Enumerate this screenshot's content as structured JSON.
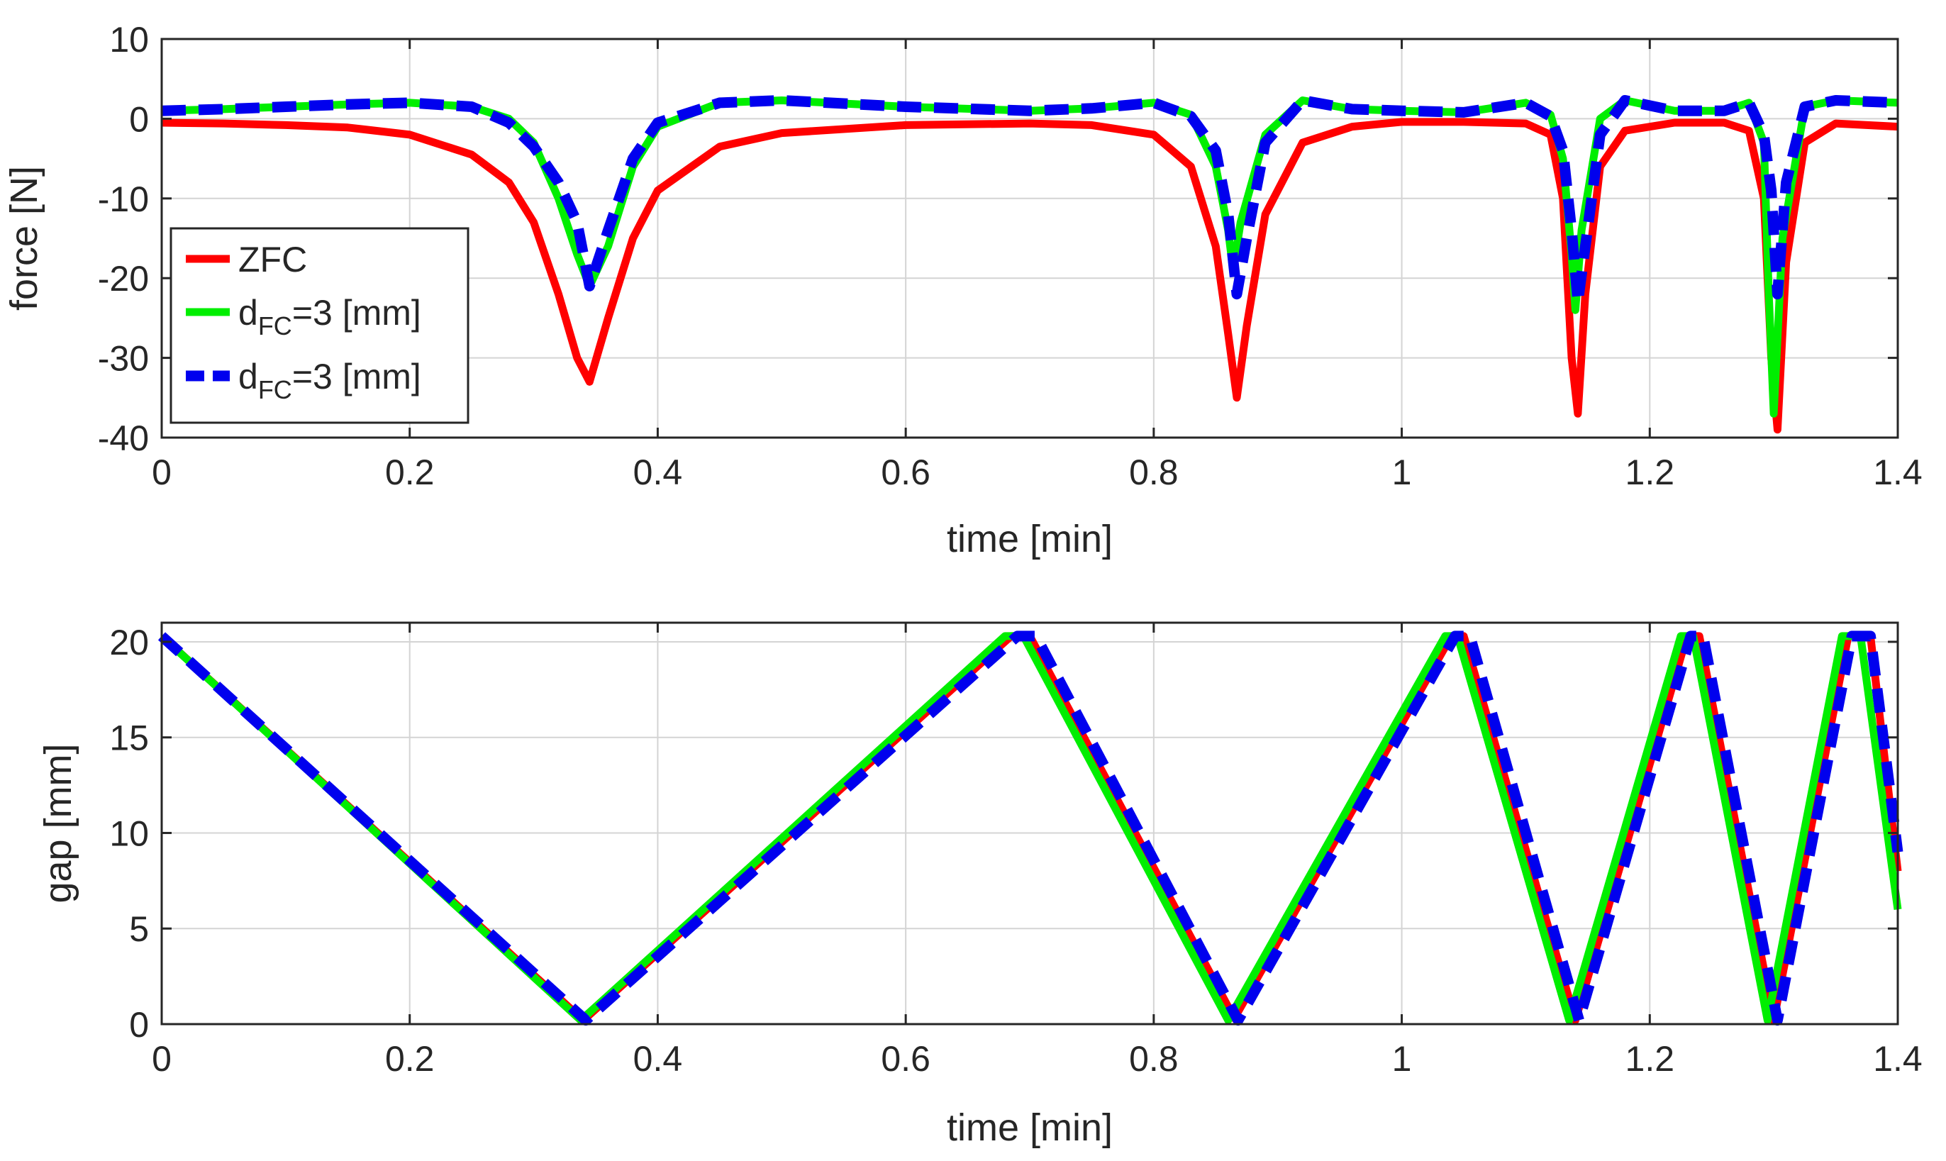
{
  "chart_data": [
    {
      "type": "line",
      "id": "force",
      "xlabel": "time [min]",
      "ylabel": "force [N]",
      "xlim": [
        0,
        1.4
      ],
      "ylim": [
        -40,
        10
      ],
      "xticks": [
        0,
        0.2,
        0.4,
        0.6,
        0.8,
        1,
        1.2,
        1.4
      ],
      "yticks": [
        10,
        0,
        -10,
        -20,
        -30,
        -40
      ],
      "xtick_labels": [
        "0",
        "0.2",
        "0.4",
        "0.6",
        "0.8",
        "1",
        "1.2",
        "1.4"
      ],
      "ytick_labels": [
        "10",
        "0",
        "-10",
        "-20",
        "-30",
        "-40"
      ],
      "grid": true,
      "legend": {
        "location": "bottom-left",
        "entries": [
          {
            "series": "ZFC",
            "label": "ZFC"
          },
          {
            "series": "FC-solid",
            "base": "d",
            "sub": "FC",
            "rest": "=3 [mm]"
          },
          {
            "series": "FC-dashed",
            "base": "d",
            "sub": "FC",
            "rest": "=3 [mm]"
          }
        ]
      },
      "series": [
        {
          "name": "ZFC",
          "color": "#ff0000",
          "style": "solid",
          "x": [
            0,
            0.05,
            0.1,
            0.15,
            0.2,
            0.25,
            0.28,
            0.3,
            0.32,
            0.335,
            0.345,
            0.36,
            0.38,
            0.4,
            0.45,
            0.5,
            0.6,
            0.7,
            0.75,
            0.8,
            0.83,
            0.85,
            0.86,
            0.867,
            0.875,
            0.89,
            0.92,
            0.96,
            1.0,
            1.05,
            1.1,
            1.12,
            1.13,
            1.137,
            1.142,
            1.148,
            1.16,
            1.18,
            1.22,
            1.26,
            1.28,
            1.292,
            1.298,
            1.303,
            1.31,
            1.325,
            1.35,
            1.4
          ],
          "y": [
            -0.5,
            -0.6,
            -0.8,
            -1.1,
            -2,
            -4.5,
            -8,
            -13,
            -22,
            -30,
            -33,
            -25,
            -15,
            -9,
            -3.5,
            -1.8,
            -0.8,
            -0.6,
            -0.8,
            -2,
            -6,
            -16,
            -27,
            -35,
            -26,
            -12,
            -3,
            -1,
            -0.4,
            -0.4,
            -0.6,
            -2,
            -10,
            -30,
            -37,
            -22,
            -6,
            -1.5,
            -0.5,
            -0.5,
            -1.5,
            -10,
            -30,
            -39,
            -18,
            -3,
            -0.6,
            -1
          ]
        },
        {
          "name": "FC-solid",
          "color": "#00ee00",
          "style": "solid",
          "x": [
            0,
            0.05,
            0.1,
            0.15,
            0.2,
            0.25,
            0.28,
            0.3,
            0.32,
            0.335,
            0.345,
            0.36,
            0.38,
            0.4,
            0.45,
            0.5,
            0.6,
            0.7,
            0.75,
            0.8,
            0.83,
            0.85,
            0.86,
            0.864,
            0.87,
            0.89,
            0.92,
            0.96,
            1.0,
            1.05,
            1.1,
            1.12,
            1.13,
            1.137,
            1.14,
            1.145,
            1.16,
            1.18,
            1.22,
            1.26,
            1.28,
            1.292,
            1.296,
            1.3,
            1.307,
            1.325,
            1.35,
            1.4
          ],
          "y": [
            1,
            1.2,
            1.5,
            1.8,
            2,
            1.5,
            0,
            -3,
            -10,
            -17,
            -21,
            -16,
            -6,
            -1,
            2,
            2.3,
            1.5,
            1,
            1.3,
            2,
            0.5,
            -6,
            -14,
            -19,
            -13,
            -2,
            2.3,
            1.2,
            1,
            0.8,
            2,
            0.5,
            -5,
            -17,
            -24,
            -14,
            0,
            2.3,
            1,
            1,
            2,
            -3,
            -22,
            -37,
            -15,
            1.5,
            2.3,
            2
          ]
        },
        {
          "name": "FC-dashed",
          "color": "#0000ee",
          "style": "dashed",
          "x": [
            0,
            0.05,
            0.1,
            0.15,
            0.2,
            0.25,
            0.28,
            0.3,
            0.32,
            0.335,
            0.345,
            0.36,
            0.38,
            0.4,
            0.45,
            0.5,
            0.6,
            0.7,
            0.75,
            0.8,
            0.83,
            0.85,
            0.86,
            0.867,
            0.875,
            0.89,
            0.92,
            0.96,
            1.0,
            1.05,
            1.1,
            1.12,
            1.13,
            1.137,
            1.142,
            1.148,
            1.16,
            1.18,
            1.22,
            1.26,
            1.28,
            1.292,
            1.298,
            1.303,
            1.31,
            1.325,
            1.35,
            1.4
          ],
          "y": [
            1,
            1.2,
            1.5,
            1.8,
            2,
            1.5,
            -0.5,
            -3.5,
            -8,
            -13,
            -21,
            -14,
            -5,
            -0.5,
            2,
            2.3,
            1.5,
            1,
            1.3,
            2,
            0.3,
            -4,
            -12,
            -22,
            -15,
            -3,
            2.3,
            1.2,
            1,
            0.8,
            2,
            0.3,
            -4,
            -14,
            -23,
            -16,
            -2,
            2.3,
            1,
            1,
            2,
            -2,
            -9,
            -22,
            -8,
            1.5,
            2.3,
            2
          ]
        }
      ]
    },
    {
      "type": "line",
      "id": "gap",
      "xlabel": "time [min]",
      "ylabel": "gap [mm]",
      "xlim": [
        0,
        1.4
      ],
      "ylim": [
        0,
        21
      ],
      "xticks": [
        0,
        0.2,
        0.4,
        0.6,
        0.8,
        1,
        1.2,
        1.4
      ],
      "yticks": [
        20,
        15,
        10,
        5,
        0
      ],
      "xtick_labels": [
        "0",
        "0.2",
        "0.4",
        "0.6",
        "0.8",
        "1",
        "1.2",
        "1.4"
      ],
      "ytick_labels": [
        "20",
        "15",
        "10",
        "5",
        "0"
      ],
      "grid": true,
      "series": [
        {
          "name": "ZFC",
          "color": "#ff0000",
          "style": "solid",
          "x": [
            0,
            0.34,
            0.685,
            0.7,
            0.865,
            1.04,
            1.05,
            1.14,
            1.23,
            1.24,
            1.3,
            1.36,
            1.378,
            1.4
          ],
          "y": [
            20.3,
            0.2,
            20.3,
            20.3,
            0.3,
            20.3,
            20.3,
            0.2,
            20.3,
            20.3,
            0.2,
            20.3,
            20.3,
            8
          ]
        },
        {
          "name": "FC-solid",
          "color": "#00ee00",
          "style": "solid",
          "x": [
            0,
            0.338,
            0.68,
            0.695,
            0.86,
            1.035,
            1.045,
            1.135,
            1.225,
            1.235,
            1.295,
            1.355,
            1.37,
            1.4
          ],
          "y": [
            20.3,
            0.2,
            20.3,
            20.3,
            0.2,
            20.3,
            20.3,
            0.2,
            20.3,
            20.3,
            0.2,
            20.3,
            20.3,
            6
          ]
        },
        {
          "name": "FC-dashed",
          "color": "#0000ee",
          "style": "dashed",
          "x": [
            0,
            0.342,
            0.69,
            0.705,
            0.868,
            1.043,
            1.055,
            1.143,
            1.233,
            1.243,
            1.303,
            1.363,
            1.378,
            1.4
          ],
          "y": [
            20.3,
            0.2,
            20.3,
            20.3,
            0.2,
            20.3,
            20.3,
            0.2,
            20.3,
            20.3,
            0.2,
            20.3,
            20.3,
            9
          ]
        }
      ]
    }
  ]
}
